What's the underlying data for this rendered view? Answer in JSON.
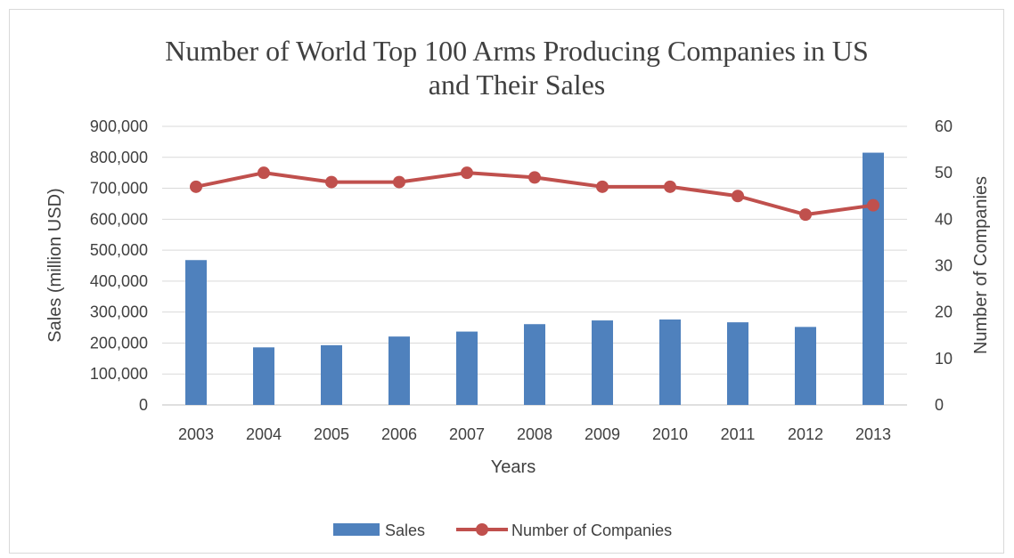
{
  "chart_data": {
    "type": "bar",
    "title_lines": [
      "Number of World Top 100 Arms Producing Companies in US",
      "and Their Sales"
    ],
    "xlabel": "Years",
    "ylabel": "Sales (million USD)",
    "y2label": "Number of Companies",
    "categories": [
      "2003",
      "2004",
      "2005",
      "2006",
      "2007",
      "2008",
      "2009",
      "2010",
      "2011",
      "2012",
      "2013"
    ],
    "ylim": [
      0,
      900000
    ],
    "y_ticks": [
      0,
      100000,
      200000,
      300000,
      400000,
      500000,
      600000,
      700000,
      800000,
      900000
    ],
    "y_tick_labels": [
      "0",
      "100,000",
      "200,000",
      "300,000",
      "400,000",
      "500,000",
      "600,000",
      "700,000",
      "800,000",
      "900,000"
    ],
    "y2lim": [
      0,
      60
    ],
    "y2_ticks": [
      0,
      10,
      20,
      30,
      40,
      50,
      60
    ],
    "y2_tick_labels": [
      "0",
      "10",
      "20",
      "30",
      "40",
      "50",
      "60"
    ],
    "grid": true,
    "legend_position": "bottom",
    "series": [
      {
        "name": "Sales",
        "type": "bar",
        "axis": "left",
        "color": "#4f81bd",
        "values": [
          468000,
          186000,
          193000,
          221000,
          237000,
          261000,
          273000,
          276000,
          267000,
          252000,
          815000
        ]
      },
      {
        "name": "Number of Companies",
        "type": "line",
        "axis": "right",
        "color": "#c0504d",
        "values": [
          47,
          50,
          48,
          48,
          50,
          49,
          47,
          47,
          45,
          41,
          43
        ]
      }
    ]
  }
}
